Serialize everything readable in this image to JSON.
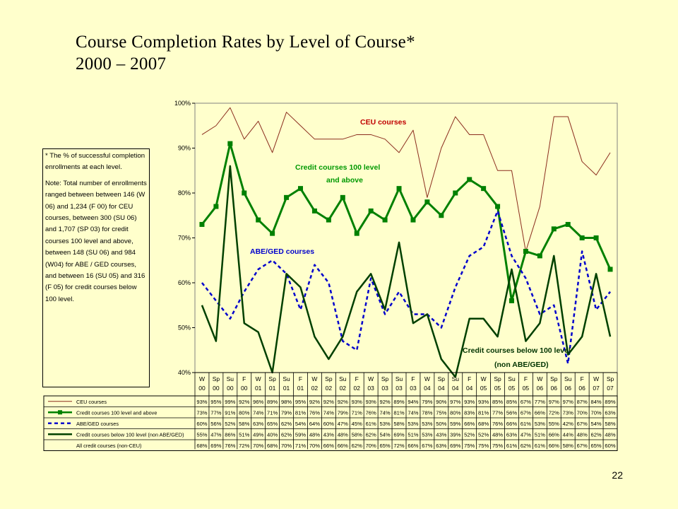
{
  "title": {
    "line1": "Course Completion Rates by Level of Course*",
    "line2": "2000 – 2007"
  },
  "note": {
    "para1": "* The % of successful completion enrollments at each level.",
    "para2": "Note: Total number of enrollments ranged between between 146 (W 06) and 1,234 (F 00) for CEU courses, between 300 (SU 06) and 1,707 (SP 03) for credit courses 100 level and above, between 148 (SU 06) and 984 (W04) for ABE / GED courses, and between 16 (SU 05) and 316 (F 05) for credit courses below 100 level."
  },
  "page_number": "22",
  "chart_data": {
    "type": "line",
    "categories": [
      {
        "season": "W",
        "year": "00"
      },
      {
        "season": "Sp",
        "year": "00"
      },
      {
        "season": "Su",
        "year": "00"
      },
      {
        "season": "F",
        "year": "00"
      },
      {
        "season": "W",
        "year": "01"
      },
      {
        "season": "Sp",
        "year": "01"
      },
      {
        "season": "Su",
        "year": "01"
      },
      {
        "season": "F",
        "year": "01"
      },
      {
        "season": "W",
        "year": "02"
      },
      {
        "season": "Sp",
        "year": "02"
      },
      {
        "season": "Su",
        "year": "02"
      },
      {
        "season": "F",
        "year": "02"
      },
      {
        "season": "W",
        "year": "03"
      },
      {
        "season": "Sp",
        "year": "03"
      },
      {
        "season": "Su",
        "year": "03"
      },
      {
        "season": "F",
        "year": "03"
      },
      {
        "season": "W",
        "year": "04"
      },
      {
        "season": "Sp",
        "year": "04"
      },
      {
        "season": "Su",
        "year": "04"
      },
      {
        "season": "F",
        "year": "04"
      },
      {
        "season": "W",
        "year": "05"
      },
      {
        "season": "Sp",
        "year": "05"
      },
      {
        "season": "Su",
        "year": "05"
      },
      {
        "season": "F",
        "year": "05"
      },
      {
        "season": "W",
        "year": "06"
      },
      {
        "season": "Sp",
        "year": "06"
      },
      {
        "season": "Su",
        "year": "06"
      },
      {
        "season": "F",
        "year": "06"
      },
      {
        "season": "W",
        "year": "07"
      },
      {
        "season": "Sp",
        "year": "07"
      }
    ],
    "ylim": [
      40,
      100
    ],
    "yticks": [
      "40%",
      "50%",
      "60%",
      "70%",
      "80%",
      "90%",
      "100%"
    ],
    "series": [
      {
        "name": "CEU courses",
        "color": "#8B2D1E",
        "style": "thin",
        "values": [
          93,
          95,
          99,
          92,
          96,
          89,
          98,
          95,
          92,
          92,
          92,
          93,
          93,
          92,
          89,
          94,
          79,
          90,
          97,
          93,
          93,
          85,
          85,
          67,
          77,
          97,
          97,
          87,
          84,
          89
        ]
      },
      {
        "name": "Credit courses 100 level and above",
        "color": "#008000",
        "style": "square",
        "values": [
          73,
          77,
          91,
          80,
          74,
          71,
          79,
          81,
          76,
          74,
          79,
          71,
          76,
          74,
          81,
          74,
          78,
          75,
          80,
          83,
          81,
          77,
          56,
          67,
          66,
          72,
          73,
          70,
          70,
          63
        ]
      },
      {
        "name": "ABE/GED courses",
        "color": "#0000CC",
        "style": "dashed",
        "values": [
          60,
          56,
          52,
          58,
          63,
          65,
          62,
          54,
          64,
          60,
          47,
          45,
          61,
          53,
          58,
          53,
          53,
          50,
          59,
          66,
          68,
          76,
          66,
          61,
          53,
          55,
          42,
          67,
          54,
          58
        ]
      },
      {
        "name": "Credit courses below 100 level (non ABE/GED)",
        "color": "#004000",
        "style": "thick",
        "values": [
          55,
          47,
          86,
          51,
          49,
          40,
          62,
          59,
          48,
          43,
          48,
          58,
          62,
          54,
          69,
          51,
          53,
          43,
          39,
          52,
          52,
          48,
          63,
          47,
          51,
          66,
          44,
          48,
          62,
          48
        ]
      },
      {
        "name": "All credit courses (non-CEU)",
        "color": "",
        "style": "none",
        "values": [
          68,
          69,
          76,
          72,
          70,
          68,
          70,
          71,
          70,
          66,
          66,
          62,
          70,
          65,
          72,
          66,
          67,
          63,
          69,
          75,
          75,
          75,
          61,
          62,
          61,
          66,
          58,
          67,
          65,
          60
        ]
      }
    ],
    "annotations": [
      {
        "text": "CEU courses",
        "color": "#C00000"
      },
      {
        "text": "Credit courses 100 level",
        "color": "#009900"
      },
      {
        "text": "and above",
        "color": "#009900"
      },
      {
        "text": "ABE/GED courses",
        "color": "#0000CC"
      },
      {
        "text": "Credit courses below 100 level",
        "color": "#003300"
      },
      {
        "text": "(non ABE/GED)",
        "color": "#003300"
      }
    ]
  }
}
